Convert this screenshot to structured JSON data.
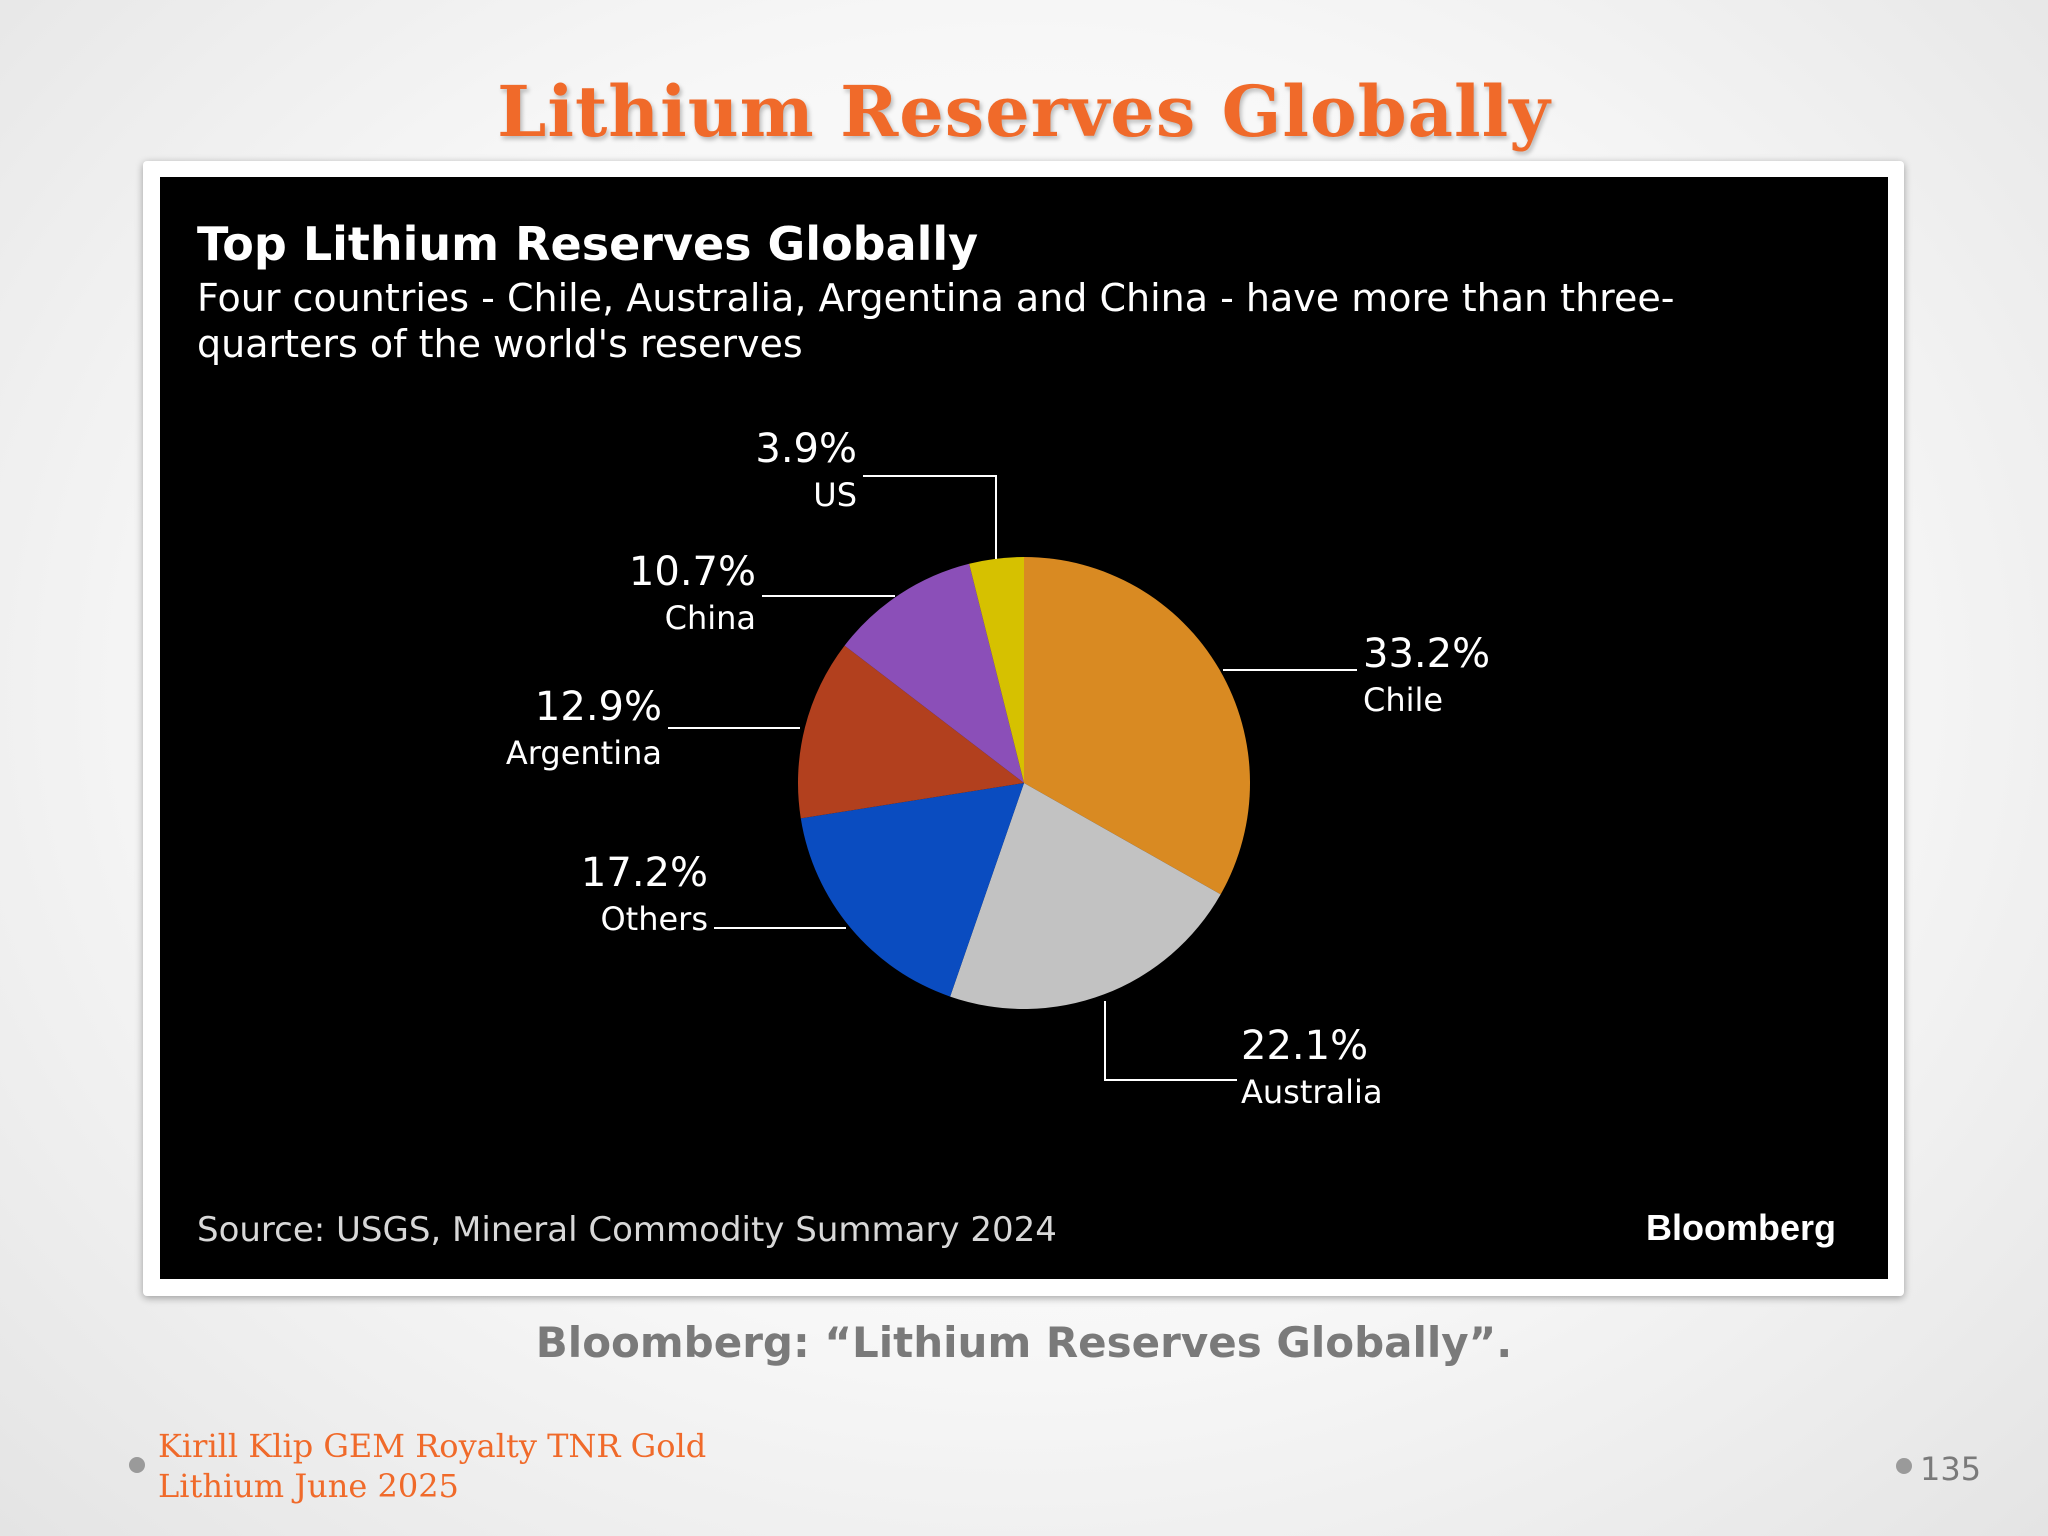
{
  "slide": {
    "title": "Lithium Reserves Globally",
    "caption": "Bloomberg: “Lithium Reserves Globally”.",
    "footer_line1": "Kirill Klip GEM Royalty TNR Gold",
    "footer_line2": "Lithium June 2025",
    "page_number": "135",
    "accent_color": "#f06a2a"
  },
  "chart_data": {
    "type": "pie",
    "title": "Top Lithium Reserves Globally",
    "subtitle_line1": "Four countries - Chile, Australia, Argentina and China - have more than three-",
    "subtitle_line2": "quarters of the world's reserves",
    "source": "Source: USGS, Mineral Commodity Summary 2024",
    "brand": "Bloomberg",
    "slices": [
      {
        "label": "Chile",
        "value": 33.2,
        "value_label": "33.2%",
        "color": "#d98a22"
      },
      {
        "label": "Australia",
        "value": 22.1,
        "value_label": "22.1%",
        "color": "#c2c2c2"
      },
      {
        "label": "Others",
        "value": 17.2,
        "value_label": "17.2%",
        "color": "#0a4cc0"
      },
      {
        "label": "Argentina",
        "value": 12.9,
        "value_label": "12.9%",
        "color": "#b2401e"
      },
      {
        "label": "China",
        "value": 10.7,
        "value_label": "10.7%",
        "color": "#8b4fb8"
      },
      {
        "label": "US",
        "value": 3.9,
        "value_label": "3.9%",
        "color": "#d6c100"
      }
    ]
  }
}
